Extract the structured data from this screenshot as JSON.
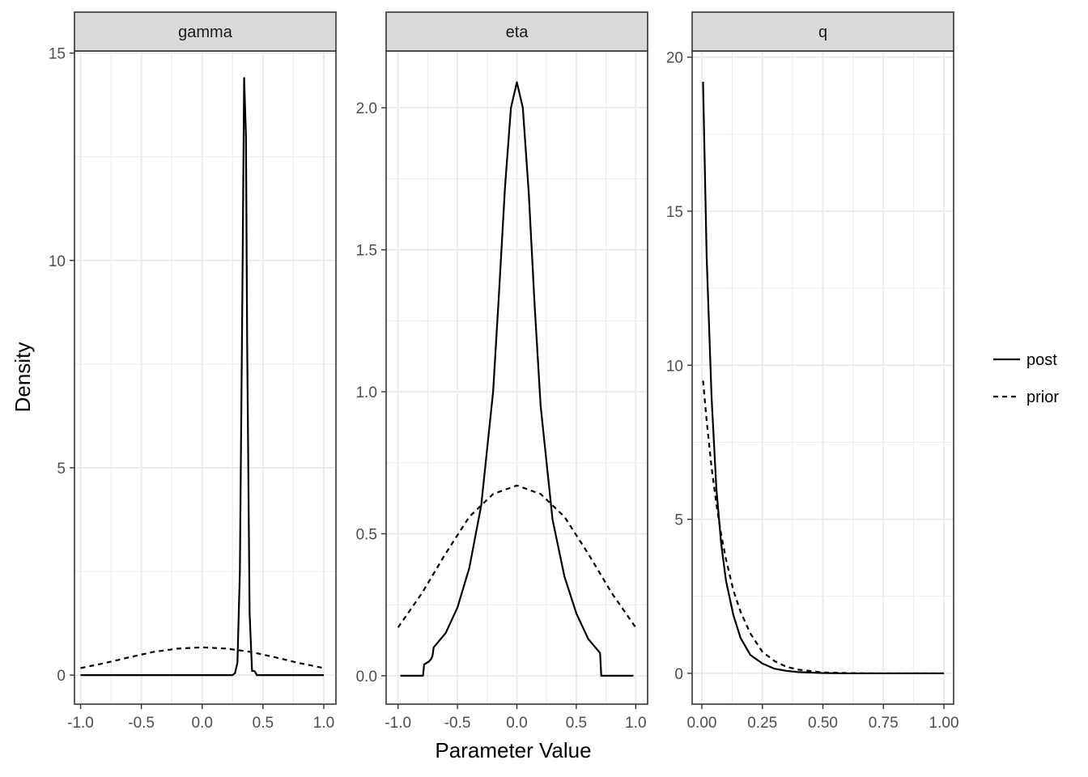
{
  "chart_data": {
    "type": "line",
    "xlabel": "Parameter Value",
    "ylabel": "Density",
    "legend": {
      "placement": "right",
      "entries": [
        {
          "name": "post",
          "linetype": "solid"
        },
        {
          "name": "prior",
          "linetype": "dashed"
        }
      ]
    },
    "colors": {
      "line": "#000000",
      "strip_fill": "#d9d9d9",
      "grid": "#ebebeb",
      "panel_border": "#333333"
    },
    "grid": true,
    "facets": [
      {
        "title": "gamma",
        "xlim": [
          -1.05,
          1.1
        ],
        "ylim": [
          -0.7,
          15.05
        ],
        "xticks": [
          -1,
          -0.5,
          0,
          0.5,
          1
        ],
        "xtick_labels": [
          "-1.0",
          "-0.5",
          "0.0",
          "0.5",
          "1.0"
        ],
        "yticks": [
          0,
          5,
          10,
          15
        ],
        "ytick_labels": [
          "0",
          "5",
          "10",
          "15"
        ],
        "series": [
          {
            "name": "post",
            "x": [
              -1.0,
              0.25,
              0.27,
              0.29,
              0.31,
              0.33,
              0.345,
              0.36,
              0.37,
              0.39,
              0.41,
              0.43,
              0.45,
              0.47,
              1.0
            ],
            "y": [
              0,
              0,
              0.05,
              0.3,
              2.5,
              9.0,
              14.4,
              13.0,
              8.0,
              1.5,
              0.1,
              0.1,
              0,
              0,
              0
            ]
          },
          {
            "name": "prior",
            "x": [
              -1.0,
              -0.8,
              -0.6,
              -0.4,
              -0.2,
              0.0,
              0.2,
              0.4,
              0.6,
              0.8,
              1.0
            ],
            "y": [
              0.17,
              0.29,
              0.43,
              0.56,
              0.64,
              0.67,
              0.64,
              0.56,
              0.43,
              0.29,
              0.17
            ]
          }
        ]
      },
      {
        "title": "eta",
        "xlim": [
          -1.1,
          1.1
        ],
        "ylim": [
          -0.1,
          2.2
        ],
        "xticks": [
          -1,
          -0.5,
          0,
          0.5,
          1
        ],
        "xtick_labels": [
          "-1.0",
          "-0.5",
          "0.0",
          "0.5",
          "1.0"
        ],
        "yticks": [
          0,
          0.5,
          1,
          1.5,
          2
        ],
        "ytick_labels": [
          "0.0",
          "0.5",
          "1.0",
          "1.5",
          "2.0"
        ],
        "series": [
          {
            "name": "post",
            "x": [
              -0.98,
              -0.79,
              -0.78,
              -0.74,
              -0.72,
              -0.71,
              -0.7,
              -0.6,
              -0.5,
              -0.4,
              -0.3,
              -0.2,
              -0.15,
              -0.1,
              -0.05,
              0.0,
              0.05,
              0.1,
              0.15,
              0.2,
              0.3,
              0.4,
              0.5,
              0.6,
              0.7,
              0.71,
              0.8,
              0.98
            ],
            "y": [
              0,
              0,
              0.04,
              0.05,
              0.06,
              0.07,
              0.1,
              0.15,
              0.24,
              0.38,
              0.6,
              1.0,
              1.35,
              1.72,
              2.0,
              2.09,
              2.0,
              1.7,
              1.3,
              0.95,
              0.55,
              0.35,
              0.22,
              0.13,
              0.08,
              0,
              0,
              0
            ]
          },
          {
            "name": "prior",
            "x": [
              -1.0,
              -0.8,
              -0.6,
              -0.4,
              -0.2,
              0.0,
              0.2,
              0.4,
              0.6,
              0.8,
              1.0
            ],
            "y": [
              0.17,
              0.29,
              0.43,
              0.56,
              0.64,
              0.67,
              0.64,
              0.56,
              0.43,
              0.29,
              0.17
            ]
          }
        ]
      },
      {
        "title": "q",
        "xlim": [
          -0.04,
          1.04
        ],
        "ylim": [
          -1.0,
          20.2
        ],
        "xticks": [
          0,
          0.25,
          0.5,
          0.75,
          1
        ],
        "xtick_labels": [
          "0.00",
          "0.25",
          "0.50",
          "0.75",
          "1.00"
        ],
        "yticks": [
          0,
          5,
          10,
          15,
          20
        ],
        "ytick_labels": [
          "0",
          "5",
          "10",
          "15",
          "20"
        ],
        "series": [
          {
            "name": "post",
            "x": [
              0.005,
              0.02,
              0.04,
              0.06,
              0.08,
              0.1,
              0.13,
              0.16,
              0.2,
              0.25,
              0.3,
              0.35,
              0.4,
              0.5,
              0.6,
              0.7,
              0.8,
              0.9,
              1.0
            ],
            "y": [
              19.2,
              13.5,
              9.0,
              6.0,
              4.2,
              3.0,
              1.9,
              1.15,
              0.6,
              0.32,
              0.15,
              0.08,
              0.04,
              0.01,
              0,
              0,
              0,
              0,
              0
            ]
          },
          {
            "name": "prior",
            "x": [
              0.005,
              0.02,
              0.04,
              0.06,
              0.08,
              0.1,
              0.13,
              0.16,
              0.2,
              0.25,
              0.3,
              0.35,
              0.4,
              0.5,
              0.6,
              0.7,
              0.8,
              0.9,
              1.0
            ],
            "y": [
              9.5,
              8.2,
              6.7,
              5.5,
              4.5,
              3.7,
              2.7,
              2.0,
              1.3,
              0.7,
              0.4,
              0.21,
              0.12,
              0.03,
              0.01,
              0,
              0,
              0,
              0
            ]
          }
        ]
      }
    ]
  }
}
